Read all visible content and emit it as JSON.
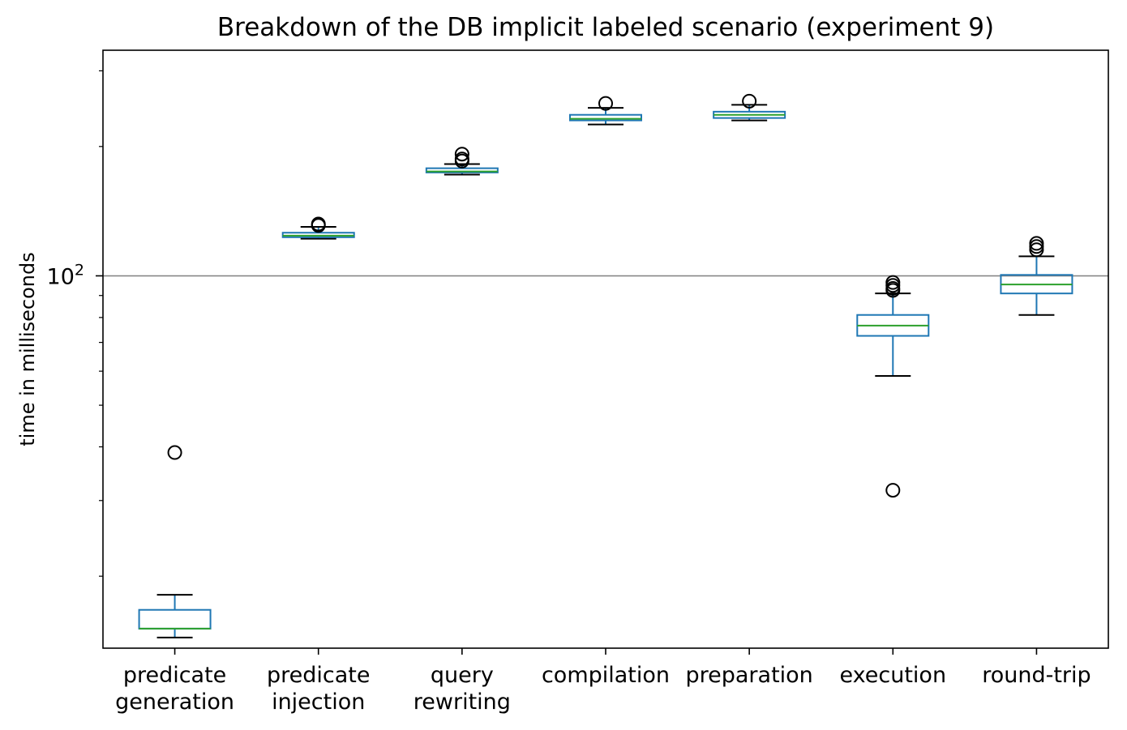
{
  "chart_data": {
    "type": "boxplot",
    "title": "Breakdown of the DB implicit labeled scenario (experiment 9)",
    "xlabel": "",
    "ylabel": "time in milliseconds",
    "yscale": "log",
    "ylim": [
      13.6,
      335
    ],
    "y_tick_label": {
      "base": "10",
      "exponent": "2",
      "value": 100
    },
    "reference_line": {
      "y": 100,
      "color": "#808080"
    },
    "grid": false,
    "colors": {
      "box": "#1f77b4",
      "median": "#2ca02c",
      "whisker": "#1f77b4",
      "cap": "#000000",
      "flier": "#000000"
    },
    "categories": [
      [
        "predicate",
        "generation"
      ],
      [
        "predicate",
        "injection"
      ],
      [
        "query",
        "rewriting"
      ],
      [
        "compilation"
      ],
      [
        "preparation"
      ],
      [
        "execution"
      ],
      [
        "round-trip"
      ]
    ],
    "series": [
      {
        "whislo": 14.4,
        "q1": 15.1,
        "med": 15.1,
        "q3": 16.7,
        "whishi": 18.1,
        "fliers": [
          38.8
        ]
      },
      {
        "whislo": 122,
        "q1": 123,
        "med": 124,
        "q3": 126,
        "whishi": 130,
        "fliers": [
          131,
          132
        ]
      },
      {
        "whislo": 172,
        "q1": 174,
        "med": 175,
        "q3": 178,
        "whishi": 182,
        "fliers": [
          185,
          187,
          192
        ]
      },
      {
        "whislo": 225,
        "q1": 230,
        "med": 232,
        "q3": 237,
        "whishi": 246,
        "fliers": [
          252
        ]
      },
      {
        "whislo": 230,
        "q1": 233,
        "med": 237,
        "q3": 241,
        "whishi": 250,
        "fliers": [
          255
        ]
      },
      {
        "whislo": 58.5,
        "q1": 72.5,
        "med": 76.6,
        "q3": 81.1,
        "whishi": 91.0,
        "fliers": [
          92.5,
          93.5,
          95,
          96.5,
          31.7
        ]
      },
      {
        "whislo": 81.1,
        "q1": 91.0,
        "med": 95.5,
        "q3": 100.5,
        "whishi": 111,
        "fliers": [
          115,
          117,
          119
        ]
      }
    ]
  }
}
